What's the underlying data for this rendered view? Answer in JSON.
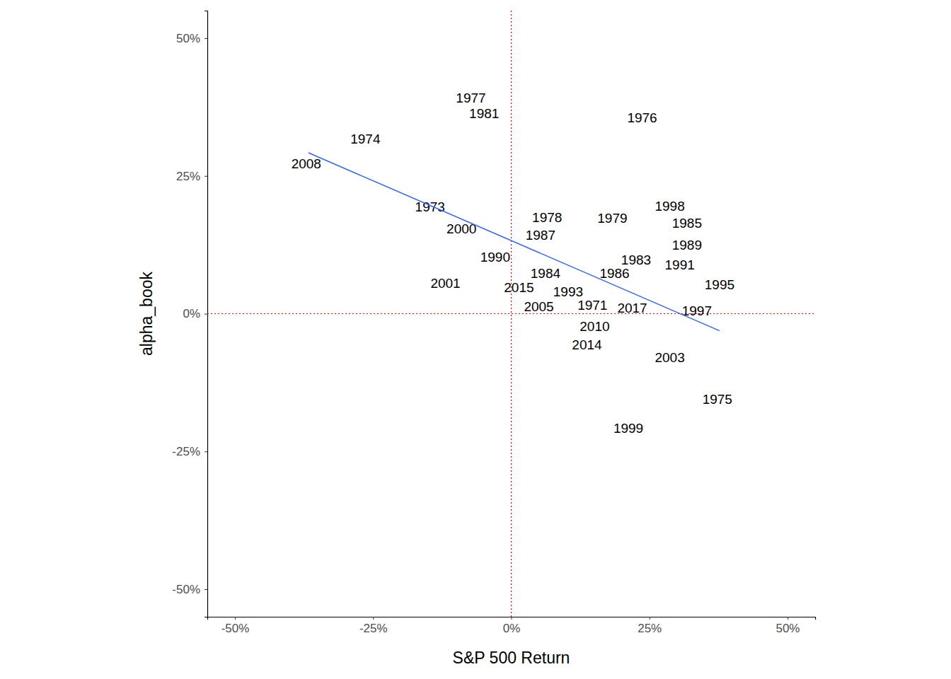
{
  "chart_data": {
    "type": "scatter",
    "x_label": "S&P 500 Return",
    "y_label": "alpha_book",
    "xlim": [
      -55,
      55
    ],
    "ylim": [
      -55,
      55
    ],
    "xticks": [
      {
        "value": -50,
        "label": "-50%"
      },
      {
        "value": -25,
        "label": "-25%"
      },
      {
        "value": 0,
        "label": "0%"
      },
      {
        "value": 25,
        "label": "25%"
      },
      {
        "value": 50,
        "label": "50%"
      }
    ],
    "yticks": [
      {
        "value": -50,
        "label": "-50%"
      },
      {
        "value": -25,
        "label": "-25%"
      },
      {
        "value": 0,
        "label": "0%"
      },
      {
        "value": 25,
        "label": "25%"
      },
      {
        "value": 50,
        "label": "50%"
      }
    ],
    "reference_lines": {
      "x": [
        0
      ],
      "y": [
        0
      ],
      "color": "#ff0000",
      "line_style": "dotted"
    },
    "series": [
      {
        "type": "text",
        "color": "#000000",
        "labels": [
          "1977",
          "1981",
          "1976",
          "1974",
          "2008",
          "1973",
          "2000",
          "1978",
          "1987",
          "1979",
          "1998",
          "1985",
          "1989",
          "1990",
          "1983",
          "1991",
          "1984",
          "1986",
          "2001",
          "1995",
          "2015",
          "1993",
          "2005",
          "1971",
          "2017",
          "1997",
          "2010",
          "2014",
          "2003",
          "1975",
          "1999"
        ],
        "x": [
          -7.3,
          -4.9,
          23.7,
          -26.4,
          -37.1,
          -14.7,
          -9.0,
          6.5,
          5.3,
          18.3,
          28.7,
          31.8,
          31.8,
          -2.9,
          22.6,
          30.5,
          6.2,
          18.7,
          -11.9,
          37.7,
          1.4,
          10.3,
          5.0,
          14.7,
          21.9,
          33.6,
          15.1,
          13.7,
          28.7,
          37.3,
          21.2
        ],
        "values": [
          39.1,
          36.3,
          35.5,
          31.7,
          27.2,
          19.4,
          15.4,
          17.4,
          14.2,
          17.3,
          19.5,
          16.4,
          12.4,
          10.3,
          9.7,
          8.8,
          7.3,
          7.3,
          5.5,
          5.3,
          4.7,
          4.0,
          1.3,
          1.5,
          1.0,
          0.5,
          -2.3,
          -5.6,
          -7.9,
          -15.5,
          -20.8
        ]
      },
      {
        "type": "line",
        "color": "#3366ff",
        "line_style": "solid",
        "x": [
          -36.7,
          37.7
        ],
        "values": [
          29.2,
          -3.1
        ]
      }
    ]
  }
}
